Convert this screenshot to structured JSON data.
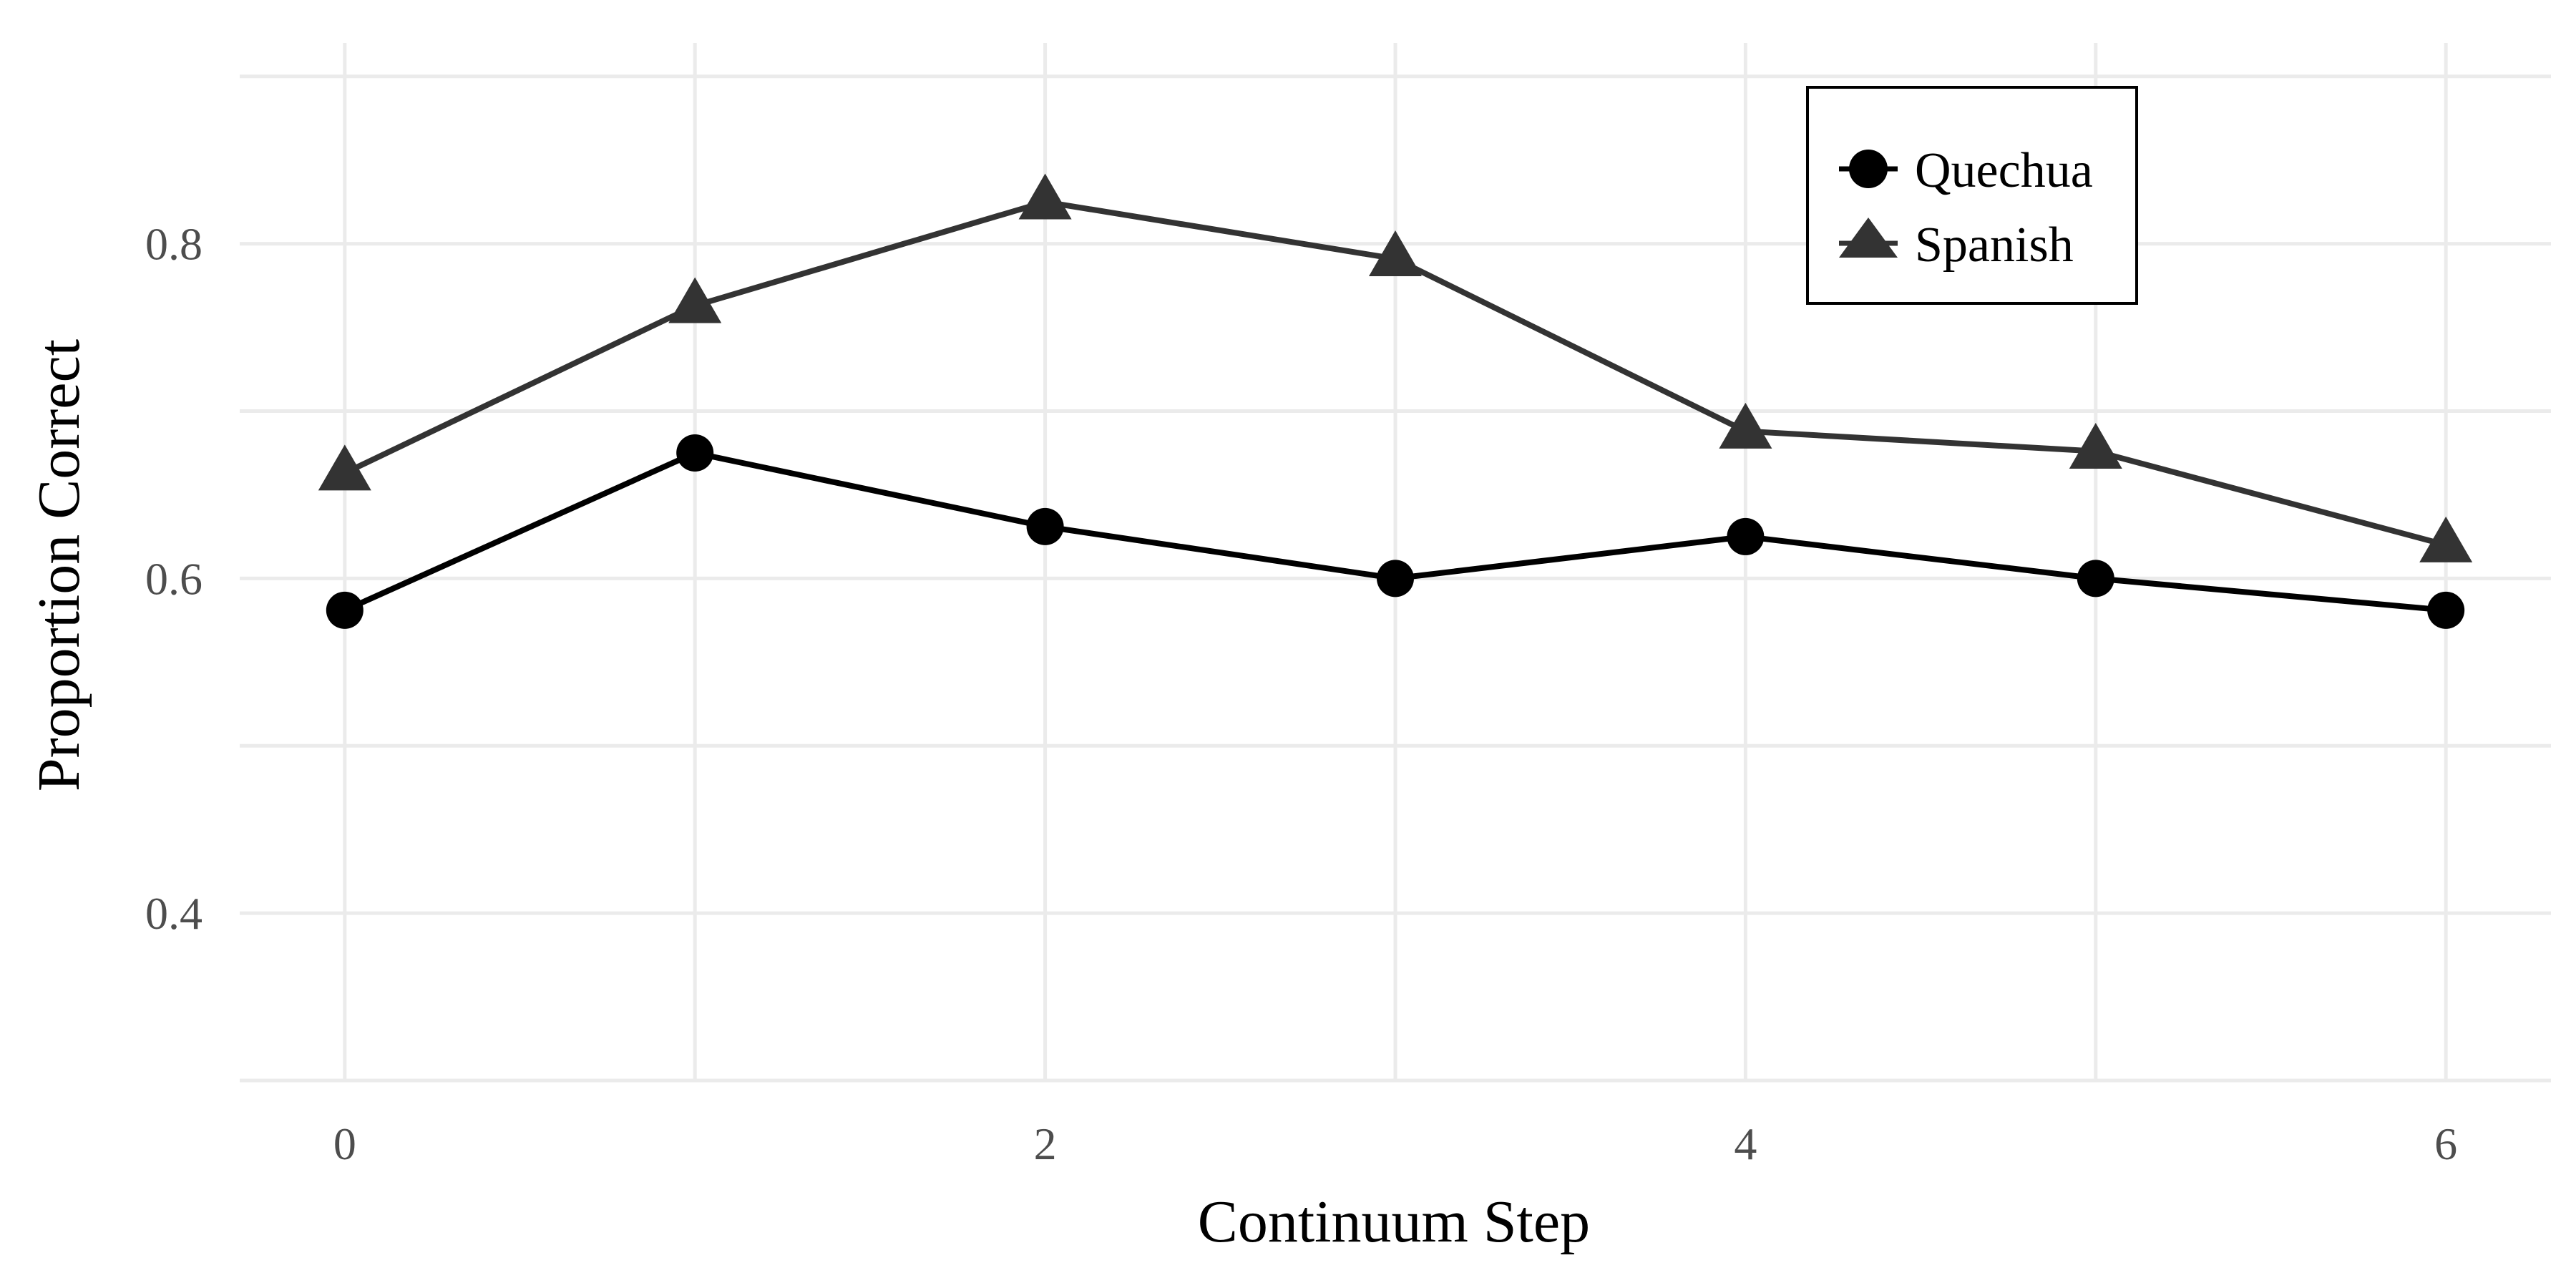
{
  "chart_data": {
    "type": "line",
    "title": "",
    "xlabel": "Continuum Step",
    "ylabel": "Proportion Correct",
    "x": [
      0,
      1,
      2,
      3,
      4,
      5,
      6
    ],
    "xlim": [
      -0.3,
      6.3
    ],
    "ylim": [
      0.3,
      0.92
    ],
    "xticks": [
      0,
      2,
      4,
      6
    ],
    "xtick_labels": [
      "0",
      "2",
      "4",
      "6"
    ],
    "yticks": [
      0.4,
      0.6,
      0.8
    ],
    "ytick_labels": [
      "0.4",
      "0.6",
      "0.8"
    ],
    "minor_xgrid": [
      1,
      3,
      5
    ],
    "minor_ygrid": [
      0.3,
      0.5,
      0.7,
      0.9
    ],
    "grid": true,
    "legend_position": "top-right",
    "series": [
      {
        "name": "Quechua",
        "marker": "circle",
        "color": "#000000",
        "values": [
          0.581,
          0.675,
          0.631,
          0.6,
          0.625,
          0.6,
          0.581
        ]
      },
      {
        "name": "Spanish",
        "marker": "triangle",
        "color": "#333333",
        "values": [
          0.663,
          0.763,
          0.825,
          0.791,
          0.688,
          0.676,
          0.62
        ]
      }
    ]
  }
}
